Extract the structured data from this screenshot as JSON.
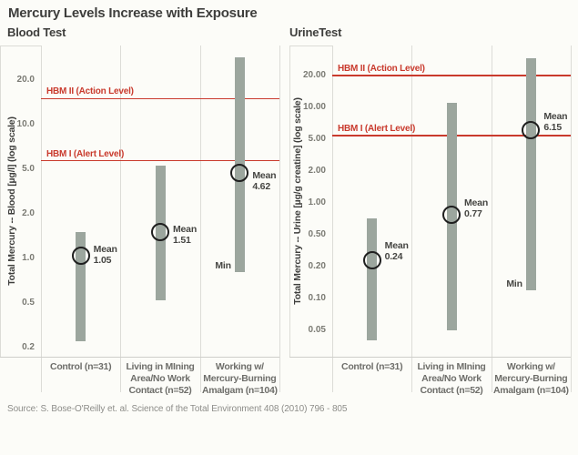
{
  "title": "Mercury Levels Increase with Exposure",
  "source": "Source: S. Bose-O'Reilly et. al. Science of the Total Environment 408 (2010) 796 - 805",
  "colors": {
    "accent_red": "#c93a2d",
    "bar": "#9ca69e",
    "grid": "#dcdcd7",
    "axis": "#cfcfca",
    "circle": "#1f1f1f",
    "title_text": "#3e3e3c",
    "category_text": "#6e6e6a",
    "tick_text": "#7a7a73",
    "annotation_text": "#454542",
    "background": "#fcfcf8"
  },
  "chart_data": [
    {
      "type": "range-bar",
      "panel_title": "Blood Test",
      "ylabel": "Total Mercury -- Blood [µg/l] (log scale)",
      "yscale": "log (tick values evenly spaced)",
      "grid": "vertical column separators only",
      "ticks": [
        {
          "value": 20,
          "label": "20.0"
        },
        {
          "value": 10,
          "label": "10.0"
        },
        {
          "value": 5,
          "label": "5.0"
        },
        {
          "value": 2,
          "label": "2.0"
        },
        {
          "value": 1,
          "label": "1.0"
        },
        {
          "value": 0.5,
          "label": "0.5"
        },
        {
          "value": 0.2,
          "label": "0.2"
        }
      ],
      "ref_lines": [
        {
          "label": "HBM II (Action Level)",
          "value": 15
        },
        {
          "label": "HBM I (Alert Level)",
          "value": 5.7
        }
      ],
      "categories": [
        [
          "Control (n=31)"
        ],
        [
          "Living in MIning",
          "Area/No Work",
          "Contact (n=52)"
        ],
        [
          "Working w/",
          "Mercury-Burning",
          "Amalgam (n=104)"
        ]
      ],
      "bars": [
        {
          "min": 0.23,
          "max": 1.5,
          "mean": 1.05,
          "mean_word": "Mean",
          "mean_label": "1.05"
        },
        {
          "min": 0.52,
          "max": 5.3,
          "mean": 1.51,
          "mean_word": "Mean",
          "mean_label": "1.51"
        },
        {
          "min": 0.81,
          "max": 28.5,
          "mean": 4.62,
          "mean_word": "Mean",
          "mean_label": "4.62",
          "min_label": "Min"
        }
      ]
    },
    {
      "type": "range-bar",
      "panel_title": "UrineTest",
      "ylabel": "Total Mercury -- Urine [µg/g creatine] (log scale)",
      "yscale": "log (tick values evenly spaced)",
      "grid": "vertical column separators only",
      "ticks": [
        {
          "value": 20,
          "label": "20.00"
        },
        {
          "value": 10,
          "label": "10.00"
        },
        {
          "value": 5,
          "label": "5.00"
        },
        {
          "value": 2,
          "label": "2.00"
        },
        {
          "value": 1,
          "label": "1.00"
        },
        {
          "value": 0.5,
          "label": "0.50"
        },
        {
          "value": 0.2,
          "label": "0.20"
        },
        {
          "value": 0.1,
          "label": "0.10"
        },
        {
          "value": 0.05,
          "label": "0.05"
        }
      ],
      "ref_lines": [
        {
          "label": "HBM II (Action Level)",
          "value": 20
        },
        {
          "label": "HBM I (Alert Level)",
          "value": 5.4
        }
      ],
      "categories": [
        [
          "Control (n=31)"
        ],
        [
          "Living in MIning",
          "Area/No Work",
          "Contact (n=52)"
        ],
        [
          "Working w/",
          "Mercury-Burning",
          "Amalgam (n=104)"
        ]
      ],
      "bars": [
        {
          "min": 0.04,
          "max": 0.72,
          "mean": 0.24,
          "mean_word": "Mean",
          "mean_label": "0.24"
        },
        {
          "min": 0.05,
          "max": 11,
          "mean": 0.77,
          "mean_word": "Mean",
          "mean_label": "0.77"
        },
        {
          "min": 0.12,
          "max": 29,
          "mean": 6.15,
          "mean_word": "Mean",
          "mean_label": "6.15",
          "min_label": "Min"
        }
      ]
    }
  ]
}
